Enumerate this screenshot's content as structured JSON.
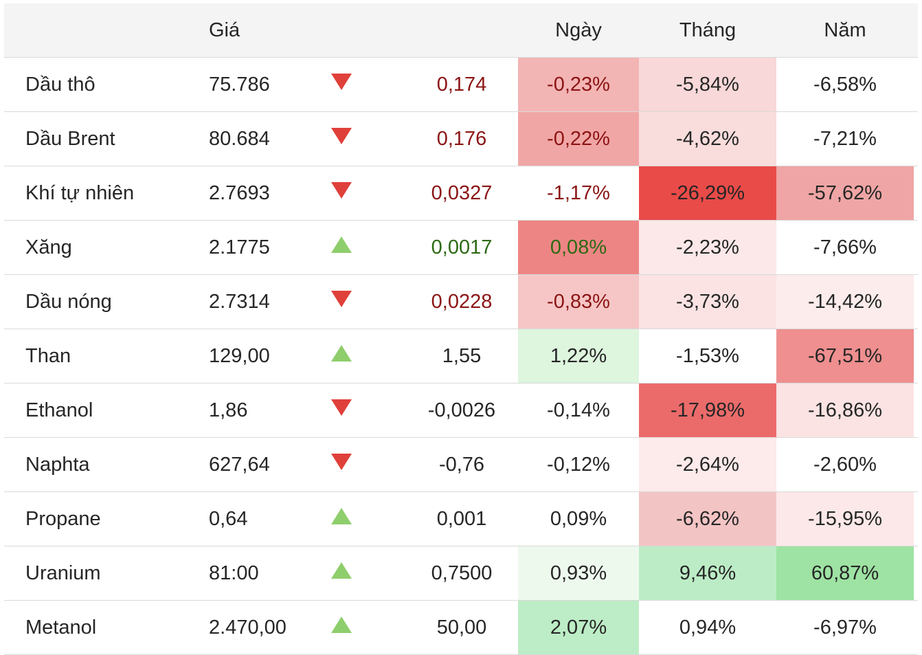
{
  "header": {
    "name": "",
    "price": "Giá",
    "change": "",
    "day": "Ngày",
    "month": "Tháng",
    "year": "Năm"
  },
  "colors": {
    "red_text": "#8b1414",
    "green_text": "#2d6a14",
    "arrow_down": "#e0403a",
    "arrow_up": "#8fce6c"
  },
  "rows": [
    {
      "name": "Dầu thô",
      "price": "75.786",
      "direction": "down",
      "change": "0,174",
      "change_color": "red",
      "day": "-0,23%",
      "day_color": "red",
      "day_bg": "#f3b4b4",
      "month": "-5,84%",
      "month_bg": "#f8d8d8",
      "year": "-6,58%",
      "year_bg": "#ffffff"
    },
    {
      "name": "Dầu Brent",
      "price": "80.684",
      "direction": "down",
      "change": "0,176",
      "change_color": "red",
      "day": "-0,22%",
      "day_color": "red",
      "day_bg": "#f1a6a6",
      "month": "-4,62%",
      "month_bg": "#f9dcdc",
      "year": "-7,21%",
      "year_bg": "#ffffff"
    },
    {
      "name": "Khí tự nhiên",
      "price": "2.7693",
      "direction": "down",
      "change": "0,0327",
      "change_color": "red",
      "day": "-1,17%",
      "day_color": "red",
      "day_bg": "#ffffff",
      "month": "-26,29%",
      "month_bg": "#e94b48",
      "year": "-57,62%",
      "year_bg": "#efa5a5"
    },
    {
      "name": "Xăng",
      "price": "2.1775",
      "direction": "up",
      "change": "0,0017",
      "change_color": "green",
      "day": "0,08%",
      "day_color": "green",
      "day_bg": "#ee8585",
      "month": "-2,23%",
      "month_bg": "#fce8e8",
      "year": "-7,66%",
      "year_bg": "#ffffff"
    },
    {
      "name": "Dầu nóng",
      "price": "2.7314",
      "direction": "down",
      "change": "0,0228",
      "change_color": "red",
      "day": "-0,83%",
      "day_color": "red",
      "day_bg": "#f6c6c6",
      "month": "-3,73%",
      "month_bg": "#fbe3e3",
      "year": "-14,42%",
      "year_bg": "#fdecec"
    },
    {
      "name": "Than",
      "price": "129,00",
      "direction": "up",
      "change": "1,55",
      "change_color": "normal",
      "day": "1,22%",
      "day_color": "normal",
      "day_bg": "#def5de",
      "month": "-1,53%",
      "month_bg": "#ffffff",
      "year": "-67,51%",
      "year_bg": "#ef8f8f"
    },
    {
      "name": "Ethanol",
      "price": "1,86",
      "direction": "down",
      "change": "-0,0026",
      "change_color": "normal",
      "day": "-0,14%",
      "day_color": "normal",
      "day_bg": "#ffffff",
      "month": "-17,98%",
      "month_bg": "#eb6b6a",
      "year": "-16,86%",
      "year_bg": "#fbe3e3"
    },
    {
      "name": "Naphta",
      "price": "627,64",
      "direction": "down",
      "change": "-0,76",
      "change_color": "normal",
      "day": "-0,12%",
      "day_color": "normal",
      "day_bg": "#ffffff",
      "month": "-2,64%",
      "month_bg": "#fdeaea",
      "year": "-2,60%",
      "year_bg": "#ffffff"
    },
    {
      "name": "Propane",
      "price": "0,64",
      "direction": "up",
      "change": "0,001",
      "change_color": "normal",
      "day": "0,09%",
      "day_color": "normal",
      "day_bg": "#ffffff",
      "month": "-6,62%",
      "month_bg": "#f3c4c4",
      "year": "-15,95%",
      "year_bg": "#fce8e8"
    },
    {
      "name": "Uranium",
      "price": "81:00",
      "direction": "up",
      "change": "0,7500",
      "change_color": "normal",
      "day": "0,93%",
      "day_color": "normal",
      "day_bg": "#eef9ee",
      "month": "9,46%",
      "month_bg": "#bcecc6",
      "year": "60,87%",
      "year_bg": "#9ee3a3"
    },
    {
      "name": "Metanol",
      "price": "2.470,00",
      "direction": "up",
      "change": "50,00",
      "change_color": "normal",
      "day": "2,07%",
      "day_color": "normal",
      "day_bg": "#bdedc6",
      "month": "0,94%",
      "month_bg": "#ffffff",
      "year": "-6,97%",
      "year_bg": "#ffffff"
    }
  ]
}
